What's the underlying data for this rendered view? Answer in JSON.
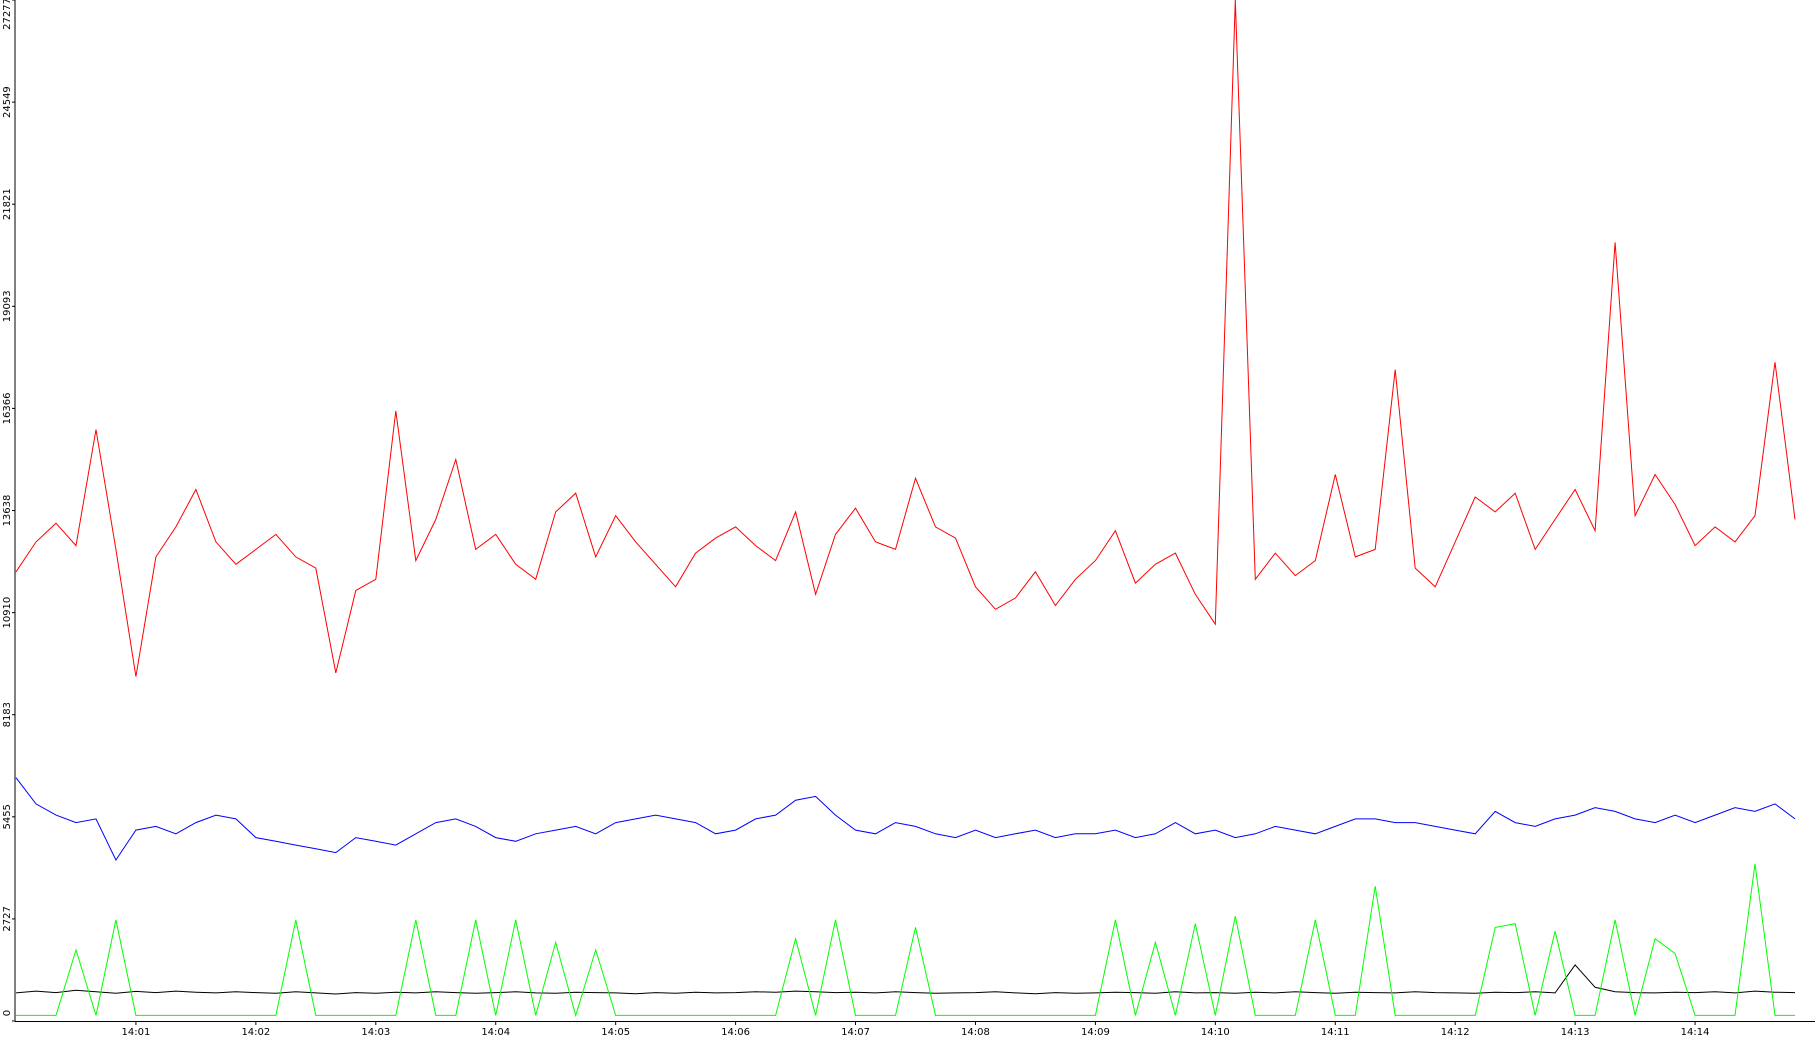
{
  "chart_data": {
    "type": "line",
    "x": [
      50400,
      50410,
      50420,
      50430,
      50440,
      50450,
      50460,
      50470,
      50480,
      50490,
      50500,
      50510,
      50520,
      50530,
      50540,
      50550,
      50560,
      50570,
      50580,
      50590,
      50600,
      50610,
      50620,
      50630,
      50640,
      50650,
      50660,
      50670,
      50680,
      50690,
      50700,
      50710,
      50720,
      50730,
      50740,
      50750,
      50760,
      50770,
      50780,
      50790,
      50800,
      50810,
      50820,
      50830,
      50840,
      50850,
      50860,
      50870,
      50880,
      50890,
      50900,
      50910,
      50920,
      50930,
      50940,
      50950,
      50960,
      50970,
      50980,
      50990,
      51000,
      51010,
      51020,
      51030,
      51040,
      51050,
      51060,
      51070,
      51080,
      51090,
      51100,
      51110,
      51120,
      51130,
      51140,
      51150,
      51160,
      51170,
      51180,
      51190,
      51200,
      51210,
      51220,
      51230,
      51240,
      51250,
      51260,
      51270,
      51280,
      51290
    ],
    "xlim": [
      50400,
      51300
    ],
    "xticks": [
      {
        "value": 50460,
        "label": "14:01"
      },
      {
        "value": 50520,
        "label": "14:02"
      },
      {
        "value": 50580,
        "label": "14:03"
      },
      {
        "value": 50640,
        "label": "14:04"
      },
      {
        "value": 50700,
        "label": "14:05"
      },
      {
        "value": 50760,
        "label": "14:06"
      },
      {
        "value": 50820,
        "label": "14:07"
      },
      {
        "value": 50880,
        "label": "14:08"
      },
      {
        "value": 50940,
        "label": "14:09"
      },
      {
        "value": 51000,
        "label": "14:10"
      },
      {
        "value": 51060,
        "label": "14:11"
      },
      {
        "value": 51120,
        "label": "14:12"
      },
      {
        "value": 51180,
        "label": "14:13"
      },
      {
        "value": 51240,
        "label": "14:14"
      }
    ],
    "ylim": [
      0,
      27277
    ],
    "yticks": [
      0,
      2727,
      5455,
      8183,
      10910,
      13638,
      16366,
      19093,
      21821,
      24549,
      27277
    ],
    "grid": false,
    "series": [
      {
        "color": "#ff0000",
        "values": [
          12000,
          12800,
          13300,
          12700,
          15800,
          12600,
          9200,
          12400,
          13200,
          14200,
          12800,
          12200,
          12600,
          13000,
          12400,
          12100,
          9300,
          11500,
          11800,
          16300,
          12300,
          13400,
          15000,
          12600,
          13000,
          12200,
          11800,
          13600,
          14100,
          12400,
          13500,
          12800,
          12200,
          11600,
          12500,
          12900,
          13200,
          12700,
          12300,
          13600,
          11400,
          13000,
          13700,
          12800,
          12600,
          14500,
          13200,
          12900,
          11600,
          11000,
          11300,
          12000,
          11100,
          11800,
          12300,
          13100,
          11700,
          12200,
          12500,
          11400,
          10600,
          27277,
          11800,
          12500,
          11900,
          12300,
          14600,
          12400,
          12600,
          17400,
          12100,
          11600,
          12800,
          14000,
          13600,
          14100,
          12600,
          13400,
          14200,
          13100,
          20800,
          13500,
          14600,
          13800,
          12700,
          13200,
          12800,
          13500,
          17600,
          13400
        ]
      },
      {
        "color": "#0000ff",
        "values": [
          6500,
          5800,
          5500,
          5300,
          5400,
          4300,
          5100,
          5200,
          5000,
          5300,
          5500,
          5400,
          4900,
          4800,
          4700,
          4600,
          4500,
          4900,
          4800,
          4700,
          5000,
          5300,
          5400,
          5200,
          4900,
          4800,
          5000,
          5100,
          5200,
          5000,
          5300,
          5400,
          5500,
          5400,
          5300,
          5000,
          5100,
          5400,
          5500,
          5900,
          6000,
          5500,
          5100,
          5000,
          5300,
          5200,
          5000,
          4900,
          5100,
          4900,
          5000,
          5100,
          4900,
          5000,
          5000,
          5100,
          4900,
          5000,
          5300,
          5000,
          5100,
          4900,
          5000,
          5200,
          5100,
          5000,
          5200,
          5400,
          5400,
          5300,
          5300,
          5200,
          5100,
          5000,
          5600,
          5300,
          5200,
          5400,
          5500,
          5700,
          5600,
          5400,
          5300,
          5500,
          5300,
          5500,
          5700,
          5600,
          5800,
          5400
        ]
      },
      {
        "color": "#000000",
        "values": [
          750,
          800,
          760,
          820,
          780,
          740,
          790,
          760,
          800,
          770,
          750,
          780,
          760,
          740,
          780,
          750,
          720,
          760,
          740,
          770,
          750,
          780,
          760,
          740,
          760,
          780,
          750,
          740,
          770,
          760,
          750,
          730,
          760,
          740,
          770,
          750,
          760,
          780,
          770,
          800,
          780,
          760,
          770,
          750,
          780,
          760,
          740,
          750,
          760,
          780,
          750,
          730,
          760,
          740,
          750,
          770,
          760,
          740,
          780,
          750,
          760,
          740,
          770,
          750,
          780,
          760,
          740,
          770,
          760,
          750,
          780,
          760,
          750,
          740,
          770,
          760,
          780,
          750,
          1500,
          900,
          780,
          760,
          750,
          770,
          760,
          780,
          750,
          800,
          770,
          760
        ]
      },
      {
        "color": "#00ff00",
        "values": [
          150,
          150,
          150,
          1900,
          150,
          2700,
          150,
          150,
          150,
          150,
          150,
          150,
          150,
          150,
          2700,
          150,
          150,
          150,
          150,
          150,
          2700,
          150,
          150,
          2700,
          150,
          2700,
          150,
          2100,
          150,
          1900,
          150,
          150,
          150,
          150,
          150,
          150,
          150,
          150,
          150,
          2200,
          150,
          2700,
          150,
          150,
          150,
          2500,
          150,
          150,
          150,
          150,
          150,
          150,
          150,
          150,
          150,
          2700,
          150,
          2100,
          150,
          2600,
          150,
          2800,
          150,
          150,
          150,
          2700,
          150,
          150,
          3600,
          150,
          150,
          150,
          150,
          150,
          2500,
          2600,
          150,
          2400,
          150,
          150,
          2700,
          150,
          2200,
          1800,
          150,
          150,
          150,
          4200,
          150,
          150
        ]
      }
    ]
  }
}
